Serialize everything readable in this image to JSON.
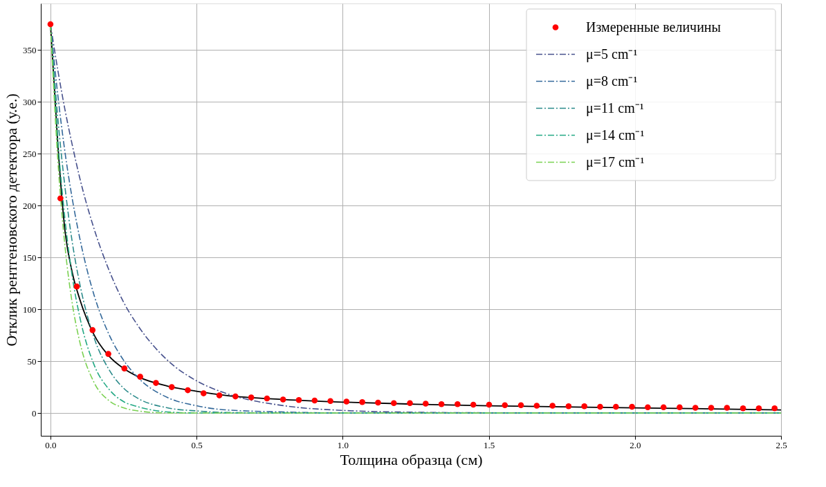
{
  "chart_data": {
    "type": "line",
    "xlabel": "Толщина образца (см)",
    "ylabel": "Отклик рентгеновского детектора (у.е.)",
    "xlim": [
      -0.033,
      2.5
    ],
    "ylim": [
      -22,
      395
    ],
    "xticks": [
      {
        "value": 0,
        "label": "0.0"
      },
      {
        "value": 0.5,
        "label": "0.5"
      },
      {
        "value": 1,
        "label": "1.0"
      },
      {
        "value": 1.5,
        "label": "1.5"
      },
      {
        "value": 2,
        "label": "2.0"
      },
      {
        "value": 2.5,
        "label": "2.5"
      }
    ],
    "yticks": [
      0,
      50,
      100,
      150,
      200,
      250,
      300,
      350
    ],
    "grid": true,
    "legend": "top right",
    "series": [
      {
        "name": "Измеренные величины",
        "type": "scatter",
        "marker": "circle",
        "color": "#ff0000",
        "x": [
          0,
          0.034,
          0.09,
          0.144,
          0.198,
          0.253,
          0.307,
          0.361,
          0.415,
          0.47,
          0.524,
          0.578,
          0.633,
          0.687,
          0.741,
          0.796,
          0.85,
          0.904,
          0.958,
          1.013,
          1.067,
          1.121,
          1.175,
          1.23,
          1.284,
          1.338,
          1.393,
          1.447,
          1.501,
          1.555,
          1.61,
          1.664,
          1.718,
          1.773,
          1.827,
          1.881,
          1.935,
          1.99,
          2.044,
          2.098,
          2.153,
          2.207,
          2.261,
          2.315,
          2.37,
          2.424,
          2.478
        ],
        "values": [
          375,
          207,
          122,
          80,
          57,
          43,
          35,
          29,
          25,
          22,
          19,
          17,
          16,
          15,
          14,
          13,
          12.5,
          12,
          11.5,
          11,
          10.5,
          10,
          9.5,
          9.5,
          9,
          8.5,
          8.5,
          8,
          8,
          7.5,
          7.5,
          7,
          7,
          6.5,
          6.5,
          6,
          6,
          6,
          5.5,
          5.5,
          5.5,
          5,
          5,
          5,
          4.5,
          4.5,
          4.5
        ]
      },
      {
        "line_style": "solid",
        "color": "#000000",
        "x": [
          0,
          0.025,
          0.05,
          0.075,
          0.1,
          0.15,
          0.2,
          0.25,
          0.3,
          0.4,
          0.5,
          0.6,
          0.8,
          1.0,
          1.25,
          1.5,
          2.0,
          2.5
        ],
        "values": [
          375,
          260,
          175,
          135,
          110,
          75,
          55,
          43,
          35,
          26,
          21,
          17,
          13,
          10.5,
          8.5,
          7,
          5,
          3
        ]
      },
      {
        "name": "μ=5 cm⁻¹",
        "line_style": "dashdot",
        "color": "#46508c",
        "x": [
          0,
          0.025,
          0.05,
          0.075,
          0.1,
          0.15,
          0.2,
          0.25,
          0.3,
          0.4,
          0.5,
          0.6,
          0.8,
          1.0,
          1.25,
          1.5,
          2.0,
          2.5
        ],
        "values": [
          375,
          331,
          292,
          258,
          227,
          177,
          138,
          107,
          84,
          51,
          31,
          19,
          7,
          2.5,
          0.7,
          0.2,
          0,
          0
        ]
      },
      {
        "name": "μ=8 cm⁻¹",
        "line_style": "dashdot",
        "color": "#33689a",
        "x": [
          0,
          0.025,
          0.05,
          0.075,
          0.1,
          0.15,
          0.2,
          0.25,
          0.3,
          0.4,
          0.5,
          0.6,
          0.8,
          1.0,
          1.25,
          1.5,
          2.0,
          2.5
        ],
        "values": [
          375,
          307,
          251,
          206,
          169,
          113,
          76,
          51,
          34,
          15,
          7,
          3,
          1,
          0,
          0,
          0,
          0,
          0
        ]
      },
      {
        "name": "μ=11 cm⁻¹",
        "line_style": "dashdot",
        "color": "#2a8a8a",
        "x": [
          0,
          0.025,
          0.05,
          0.075,
          0.1,
          0.15,
          0.2,
          0.25,
          0.3,
          0.4,
          0.5,
          0.6,
          0.8,
          1.0,
          1.25,
          1.5,
          2.0,
          2.5
        ],
        "values": [
          375,
          285,
          217,
          164,
          125,
          72,
          42,
          24,
          14,
          5,
          2,
          0.5,
          0,
          0,
          0,
          0,
          0,
          0
        ]
      },
      {
        "name": "μ=14 cm⁻¹",
        "line_style": "dashdot",
        "color": "#22a884",
        "x": [
          0,
          0.025,
          0.05,
          0.075,
          0.1,
          0.15,
          0.2,
          0.25,
          0.3,
          0.4,
          0.5,
          0.6,
          0.8,
          1.0,
          1.25,
          1.5,
          2.0,
          2.5
        ],
        "values": [
          375,
          264,
          186,
          131,
          93,
          46,
          23,
          11,
          6,
          1,
          0,
          0,
          0,
          0,
          0,
          0,
          0,
          0
        ]
      },
      {
        "name": "μ=17 cm⁻¹",
        "line_style": "dashdot",
        "color": "#7ad151",
        "x": [
          0,
          0.025,
          0.05,
          0.075,
          0.1,
          0.15,
          0.2,
          0.25,
          0.3,
          0.4,
          0.5,
          0.6,
          0.8,
          1.0,
          1.25,
          1.5,
          2.0,
          2.5
        ],
        "values": [
          375,
          245,
          160,
          105,
          69,
          29,
          12,
          5,
          2,
          0,
          0,
          0,
          0,
          0,
          0,
          0,
          0,
          0
        ]
      }
    ]
  }
}
